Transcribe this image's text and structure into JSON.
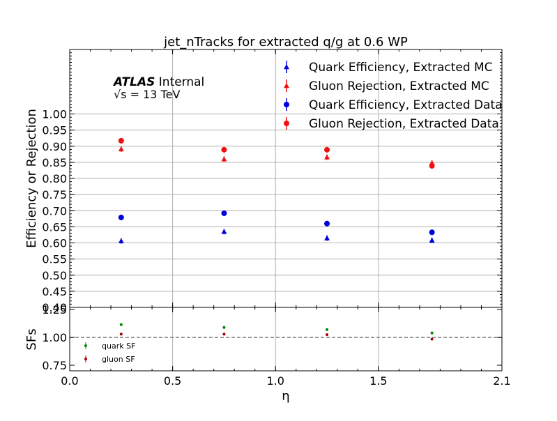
{
  "chart_data": [
    {
      "type": "scatter",
      "title": "jet_nTracks for extracted q/g at 0.6 WP",
      "ylabel": "Efficiency or Rejection",
      "xlabel": "",
      "watermark_bold": "ATLAS",
      "watermark_rest": "Internal",
      "energy_label": "√s = 13 TeV",
      "xlim": [
        0.0,
        2.1
      ],
      "ylim": [
        0.4,
        1.2
      ],
      "yticks": [
        "0.40",
        "0.45",
        "0.50",
        "0.55",
        "0.60",
        "0.65",
        "0.70",
        "0.75",
        "0.80",
        "0.85",
        "0.90",
        "0.95",
        "1.00"
      ],
      "grid": true,
      "legend_position": "top-right",
      "x": [
        0.25,
        0.75,
        1.25,
        1.76
      ],
      "series": [
        {
          "name": "Quark Efficiency, Extracted MC",
          "marker": "triangle",
          "color": "#0000dd",
          "values": [
            0.606,
            0.635,
            0.615,
            0.608
          ]
        },
        {
          "name": "Gluon Rejection, Extracted MC",
          "marker": "triangle",
          "color": "#ee1111",
          "values": [
            0.891,
            0.86,
            0.866,
            0.848
          ]
        },
        {
          "name": "Quark Efficiency, Extracted Data",
          "marker": "circle",
          "color": "#0000dd",
          "values": [
            0.679,
            0.692,
            0.66,
            0.633
          ]
        },
        {
          "name": "Gluon Rejection, Extracted Data",
          "marker": "circle",
          "color": "#ee1111",
          "values": [
            0.917,
            0.889,
            0.889,
            0.839
          ]
        }
      ]
    },
    {
      "type": "scatter",
      "xlabel": "η",
      "ylabel": "SFs",
      "xlim": [
        0.0,
        2.1
      ],
      "ylim": [
        0.7,
        1.27
      ],
      "xticks": [
        "0.0",
        "0.5",
        "1.0",
        "1.5",
        "2.1"
      ],
      "yticks": [
        "0.75",
        "1.00",
        "1.25"
      ],
      "reference_line": 1.0,
      "legend_position": "lower-left",
      "x": [
        0.25,
        0.75,
        1.25,
        1.76
      ],
      "series": [
        {
          "name": "quark SF",
          "marker": "dot",
          "color": "#008800",
          "values": [
            1.115,
            1.09,
            1.07,
            1.04
          ]
        },
        {
          "name": "gluon SF",
          "marker": "dot",
          "color": "#aa0000",
          "values": [
            1.03,
            1.03,
            1.025,
            0.985
          ]
        }
      ]
    }
  ]
}
